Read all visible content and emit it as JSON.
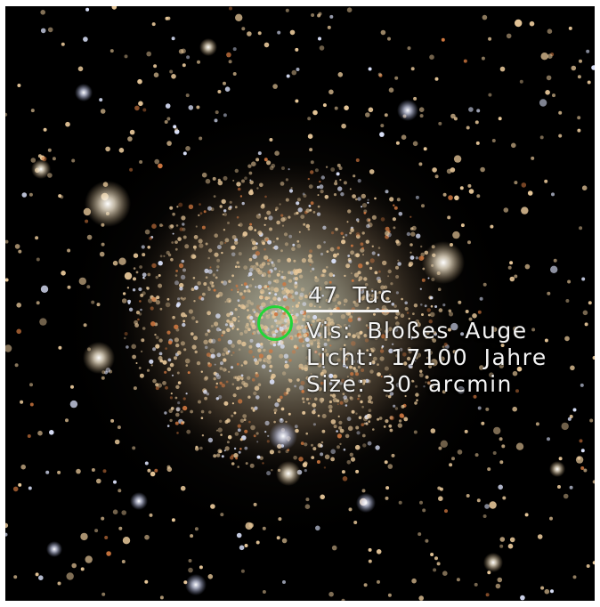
{
  "object": {
    "name": "47 Tuc",
    "visibility": "Vis: Bloßes Auge",
    "distance": "Licht: 17100 Jahre",
    "size": "Size: 30 arcmin"
  },
  "colors": {
    "background": "#000000",
    "label_text": "#f4f4f4",
    "selection_marker": "#22d638",
    "star_warm": "#e8c89a",
    "star_hot": "#dfe6ff",
    "star_red": "#d07840"
  },
  "icons": {
    "selection": "target-circle-icon"
  }
}
